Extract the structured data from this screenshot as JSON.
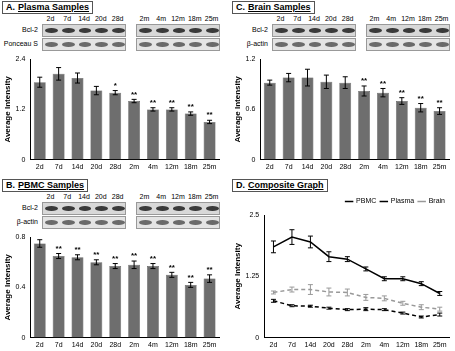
{
  "chart_data": [
    {
      "type": "bar",
      "panel": "A.",
      "title": "Plasma Samples",
      "blot_rows": [
        "Bcl-2",
        "Ponceau S"
      ],
      "categories": [
        "2d",
        "7d",
        "14d",
        "20d",
        "28d",
        "2m",
        "4m",
        "12m",
        "18m",
        "25m"
      ],
      "values": [
        1.85,
        2.05,
        1.95,
        1.65,
        1.6,
        1.4,
        1.2,
        1.2,
        1.1,
        0.9
      ],
      "errors": [
        0.12,
        0.15,
        0.12,
        0.1,
        0.05,
        0.04,
        0.04,
        0.04,
        0.04,
        0.04
      ],
      "significance": [
        null,
        null,
        null,
        null,
        "*",
        "**",
        "**",
        "**",
        "**",
        "**"
      ],
      "y_label": "Average Intensity",
      "ylim": [
        0,
        2.4
      ],
      "yticks": [
        0,
        1.2,
        2.4
      ],
      "color": "#6e6e6e",
      "grid": false
    },
    {
      "type": "bar",
      "panel": "B.",
      "title": "PBMC Samples",
      "blot_rows": [
        "Bcl-2",
        "β-actin"
      ],
      "categories": [
        "2d",
        "7d",
        "14d",
        "20d",
        "28d",
        "2m",
        "4m",
        "12m",
        "18m",
        "25m"
      ],
      "values": [
        0.75,
        0.65,
        0.64,
        0.6,
        0.57,
        0.58,
        0.57,
        0.5,
        0.42,
        0.47
      ],
      "errors": [
        0.03,
        0.02,
        0.02,
        0.02,
        0.02,
        0.03,
        0.02,
        0.02,
        0.02,
        0.03
      ],
      "significance": [
        null,
        "**",
        "**",
        "**",
        "**",
        "**",
        "**",
        "**",
        "**",
        "**"
      ],
      "y_label": "Average Intensity",
      "ylim": [
        0,
        0.8
      ],
      "yticks": [
        0,
        0.4,
        0.8
      ],
      "color": "#6e6e6e",
      "grid": false
    },
    {
      "type": "bar",
      "panel": "C.",
      "title": "Brain Samples",
      "blot_rows": [
        "Bcl-2",
        "β-actin"
      ],
      "categories": [
        "2d",
        "7d",
        "14d",
        "20d",
        "28d",
        "2m",
        "4m",
        "12m",
        "18m",
        "25m"
      ],
      "values": [
        0.92,
        0.98,
        0.98,
        0.93,
        0.92,
        0.82,
        0.8,
        0.7,
        0.62,
        0.58
      ],
      "errors": [
        0.03,
        0.05,
        0.1,
        0.08,
        0.07,
        0.06,
        0.05,
        0.04,
        0.05,
        0.04
      ],
      "significance": [
        null,
        null,
        null,
        null,
        null,
        "**",
        "**",
        "**",
        "**",
        "**"
      ],
      "y_label": "Average Intensity",
      "ylim": [
        0,
        1.2
      ],
      "yticks": [
        0,
        0.6,
        1.2
      ],
      "color": "#6e6e6e",
      "grid": false
    },
    {
      "type": "line",
      "panel": "D.",
      "title": "Composite Graph",
      "categories": [
        "2d",
        "7d",
        "14d",
        "20d",
        "28d",
        "2m",
        "4m",
        "12m",
        "18m",
        "25m"
      ],
      "series": [
        {
          "name": "PBMC",
          "color": "#000000",
          "line_style": "dashed",
          "values": [
            0.75,
            0.65,
            0.64,
            0.6,
            0.57,
            0.58,
            0.57,
            0.5,
            0.42,
            0.47
          ],
          "errors": [
            0.03,
            0.02,
            0.02,
            0.02,
            0.02,
            0.03,
            0.02,
            0.02,
            0.02,
            0.03
          ]
        },
        {
          "name": "Plasma",
          "color": "#000000",
          "line_style": "solid",
          "values": [
            1.85,
            2.05,
            1.95,
            1.65,
            1.6,
            1.4,
            1.2,
            1.2,
            1.1,
            0.9
          ],
          "errors": [
            0.12,
            0.15,
            0.12,
            0.1,
            0.05,
            0.04,
            0.04,
            0.04,
            0.04,
            0.04
          ]
        },
        {
          "name": "Brain",
          "color": "#999999",
          "line_style": "dashed",
          "values": [
            0.92,
            0.98,
            0.98,
            0.93,
            0.92,
            0.82,
            0.8,
            0.7,
            0.62,
            0.58
          ],
          "errors": [
            0.03,
            0.05,
            0.1,
            0.08,
            0.07,
            0.06,
            0.05,
            0.04,
            0.05,
            0.04
          ]
        }
      ],
      "y_label": "Average Intensity",
      "ylim": [
        0,
        2.5
      ],
      "yticks": [
        0,
        1.25,
        2.5
      ],
      "legend": "upper right",
      "grid": false
    }
  ]
}
